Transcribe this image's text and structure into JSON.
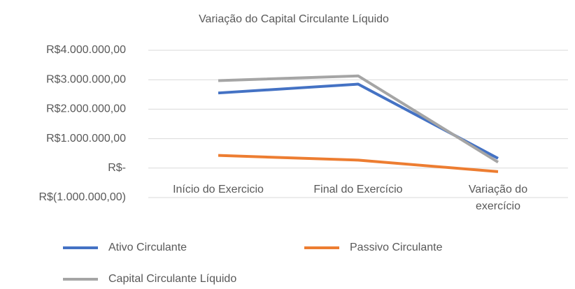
{
  "chart_data": {
    "type": "line",
    "title": "Variação do Capital Circulante Líquido",
    "categories": [
      "Início do Exercicio",
      "Final do Exercício",
      "Variação do exercício"
    ],
    "series": [
      {
        "name": "Ativo Circulante",
        "color": "#4472c4",
        "values": [
          2550000,
          2850000,
          330000
        ]
      },
      {
        "name": "Passivo Circulante",
        "color": "#ed7d31",
        "values": [
          430000,
          270000,
          -120000
        ]
      },
      {
        "name": "Capital Circulante Líquido",
        "color": "#a5a5a5",
        "values": [
          2970000,
          3130000,
          200000
        ]
      }
    ],
    "ylim": [
      -1000000,
      4000000
    ],
    "yticks": [
      {
        "value": -1000000,
        "label": "R$(1.000.000,00)"
      },
      {
        "value": 0,
        "label": "R$-"
      },
      {
        "value": 1000000,
        "label": "R$1.000.000,00"
      },
      {
        "value": 2000000,
        "label": "R$2.000.000,00"
      },
      {
        "value": 3000000,
        "label": "R$3.000.000,00"
      },
      {
        "value": 4000000,
        "label": "R$4.000.000,00"
      }
    ],
    "grid": true,
    "legend": "bottom"
  }
}
